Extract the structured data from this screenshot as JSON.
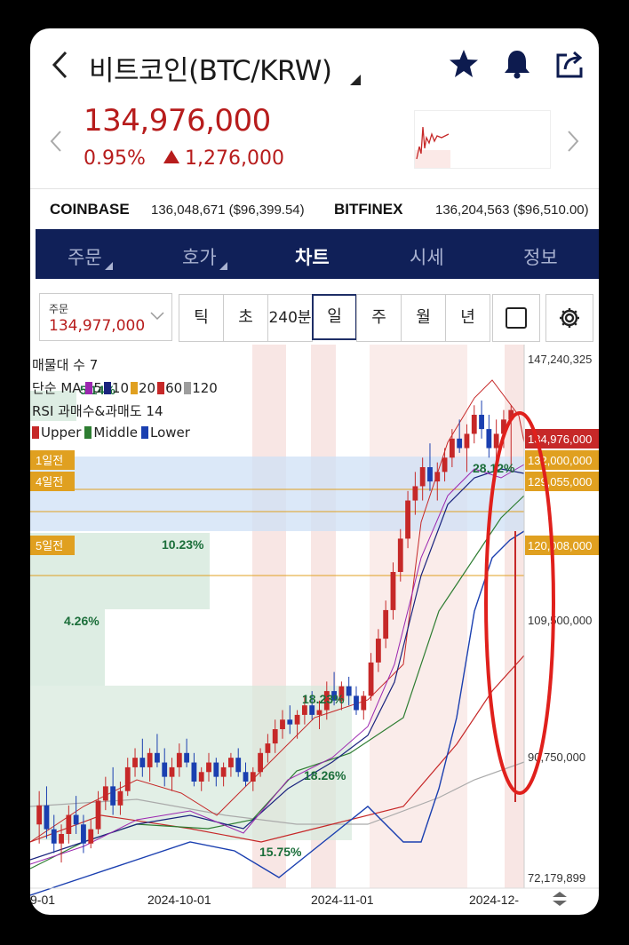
{
  "header": {
    "title": "비트코인(BTC/KRW)"
  },
  "ticker": {
    "price": "134,976,000",
    "change_pct": "0.95%",
    "change_amt": "1,276,000"
  },
  "exchanges": [
    {
      "name": "COINBASE",
      "value": "136,048,671 ($96,399.54)"
    },
    {
      "name": "BITFINEX",
      "value": "136,204,563 ($96,510.00)"
    }
  ],
  "tabs": [
    {
      "label": "주문",
      "has_dropdown": true
    },
    {
      "label": "호가",
      "has_dropdown": true
    },
    {
      "label": "차트",
      "active": true
    },
    {
      "label": "시세"
    },
    {
      "label": "정보"
    }
  ],
  "order_box": {
    "label": "주문",
    "value": "134,977,000"
  },
  "periods": [
    "틱",
    "초",
    "240분",
    "일",
    "주",
    "월",
    "년"
  ],
  "active_period": "일",
  "legend": {
    "line1": "매물대 수 7",
    "ma_prefix": "단순 MA",
    "ma_items": [
      {
        "label": "5",
        "color": "#9c27b0"
      },
      {
        "label": "10",
        "color": "#1a237e"
      },
      {
        "label": "20",
        "color": "#e0a020"
      },
      {
        "label": "60",
        "color": "#c62828"
      },
      {
        "label": "120",
        "color": "#9e9e9e"
      }
    ],
    "line3": "RSI 과매수&과매도 14",
    "bands": [
      {
        "label": "Upper",
        "color": "#c62828"
      },
      {
        "label": "Middle",
        "color": "#2e7d32"
      },
      {
        "label": "Lower",
        "color": "#1a3fb0"
      }
    ]
  },
  "chart_data": {
    "type": "candlestick",
    "y_axis_labels": [
      "147,240,325",
      "109,500,000",
      "90,750,000",
      "72,179,899"
    ],
    "price_tags": [
      {
        "label": "134,976,000",
        "color": "#c62828"
      },
      {
        "label": "132,000,000",
        "color": "#e0a020"
      },
      {
        "label": "129,055,000",
        "color": "#e0a020"
      },
      {
        "label": "120,008,000",
        "color": "#e0a020"
      }
    ],
    "left_tags": [
      "1일전",
      "4일전",
      "5일전"
    ],
    "x_labels": [
      "9-01",
      "2024-10-01",
      "2024-11-01",
      "2024-12-"
    ],
    "volume_profile_labels": [
      "5.14%",
      "10.23%",
      "4.26%",
      "18.23%",
      "18.26%",
      "15.75%",
      "28.12%"
    ],
    "candles": [
      [
        48,
        55,
        44,
        52
      ],
      [
        52,
        56,
        45,
        47
      ],
      [
        47,
        50,
        42,
        44
      ],
      [
        44,
        48,
        40,
        46
      ],
      [
        46,
        52,
        44,
        50
      ],
      [
        50,
        54,
        46,
        48
      ],
      [
        48,
        50,
        42,
        44
      ],
      [
        44,
        49,
        43,
        47
      ],
      [
        47,
        55,
        46,
        53
      ],
      [
        53,
        58,
        51,
        56
      ],
      [
        56,
        60,
        50,
        52
      ],
      [
        52,
        57,
        50,
        55
      ],
      [
        55,
        62,
        54,
        60
      ],
      [
        60,
        64,
        58,
        62
      ],
      [
        62,
        66,
        58,
        60
      ],
      [
        60,
        64,
        57,
        63
      ],
      [
        63,
        67,
        60,
        61
      ],
      [
        61,
        64,
        56,
        58
      ],
      [
        58,
        62,
        55,
        60
      ],
      [
        60,
        65,
        58,
        63
      ],
      [
        63,
        66,
        60,
        61
      ],
      [
        61,
        63,
        56,
        57
      ],
      [
        57,
        60,
        55,
        59
      ],
      [
        59,
        63,
        57,
        61
      ],
      [
        61,
        62,
        56,
        58
      ],
      [
        58,
        61,
        56,
        60
      ],
      [
        60,
        63,
        58,
        62
      ],
      [
        62,
        64,
        58,
        59
      ],
      [
        59,
        61,
        56,
        57
      ],
      [
        57,
        60,
        55,
        59
      ],
      [
        59,
        64,
        58,
        63
      ],
      [
        63,
        67,
        61,
        65
      ],
      [
        65,
        70,
        63,
        68
      ],
      [
        68,
        72,
        66,
        70
      ],
      [
        70,
        73,
        67,
        69
      ],
      [
        69,
        72,
        66,
        71
      ],
      [
        71,
        75,
        69,
        73
      ],
      [
        73,
        76,
        70,
        71
      ],
      [
        71,
        74,
        68,
        72
      ],
      [
        72,
        78,
        70,
        76
      ],
      [
        76,
        80,
        73,
        74
      ],
      [
        74,
        78,
        72,
        77
      ],
      [
        77,
        79,
        73,
        75
      ],
      [
        75,
        77,
        71,
        72
      ],
      [
        72,
        76,
        70,
        75
      ],
      [
        75,
        84,
        74,
        82
      ],
      [
        82,
        89,
        80,
        87
      ],
      [
        87,
        95,
        85,
        93
      ],
      [
        93,
        103,
        91,
        101
      ],
      [
        101,
        110,
        99,
        108
      ],
      [
        108,
        118,
        106,
        116
      ],
      [
        116,
        122,
        113,
        119
      ],
      [
        119,
        125,
        116,
        123
      ],
      [
        123,
        128,
        118,
        120
      ],
      [
        120,
        124,
        116,
        122
      ],
      [
        122,
        127,
        120,
        125
      ],
      [
        125,
        131,
        123,
        129
      ],
      [
        129,
        133,
        126,
        127
      ],
      [
        127,
        132,
        122,
        130
      ],
      [
        130,
        136,
        128,
        134
      ],
      [
        134,
        137,
        129,
        131
      ],
      [
        131,
        134,
        125,
        127
      ],
      [
        127,
        133,
        124,
        130
      ],
      [
        130,
        135,
        127,
        133
      ],
      [
        133,
        136,
        122,
        135
      ]
    ]
  }
}
